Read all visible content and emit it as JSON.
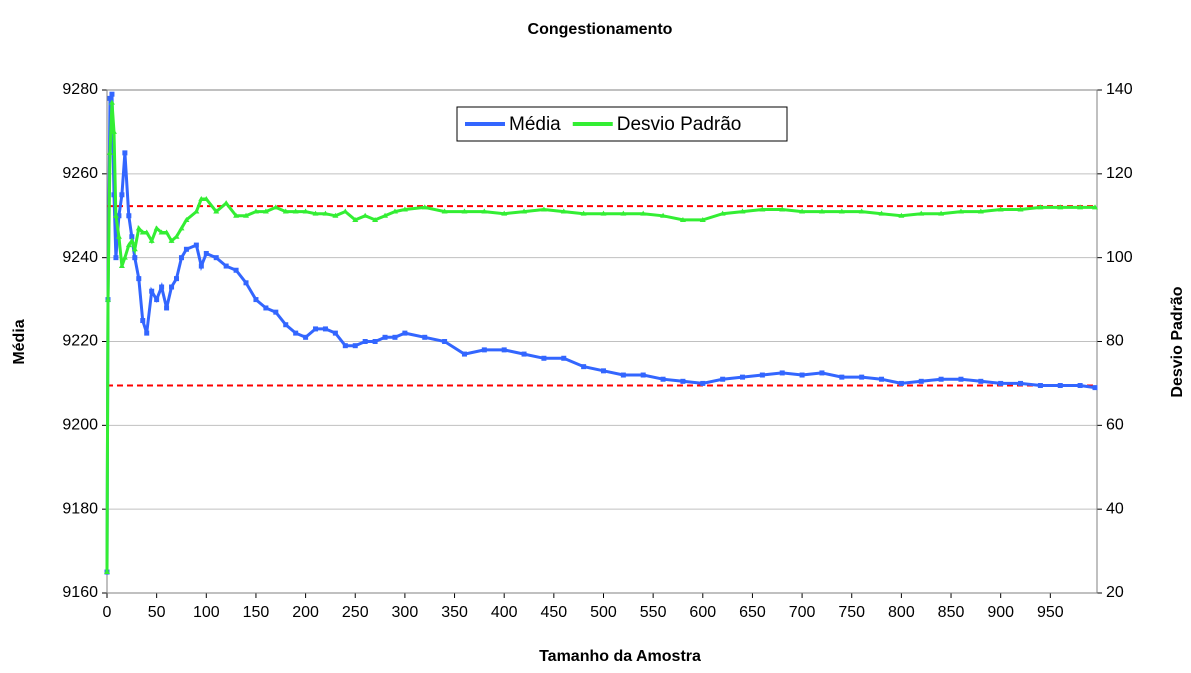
{
  "chart_data": {
    "type": "line",
    "title": "Congestionamento",
    "x_label": "Tamanho da Amostra",
    "y_label": "Média",
    "y2_label": "Desvio Padrão",
    "x": [
      0,
      1,
      3,
      5,
      7,
      9,
      12,
      15,
      18,
      22,
      25,
      28,
      32,
      36,
      40,
      45,
      50,
      55,
      60,
      65,
      70,
      75,
      80,
      90,
      95,
      100,
      110,
      120,
      130,
      140,
      150,
      160,
      170,
      180,
      190,
      200,
      210,
      220,
      230,
      240,
      250,
      260,
      270,
      280,
      290,
      300,
      320,
      340,
      360,
      380,
      400,
      420,
      440,
      460,
      480,
      500,
      520,
      540,
      560,
      580,
      600,
      620,
      640,
      660,
      680,
      700,
      720,
      740,
      760,
      780,
      800,
      820,
      840,
      860,
      880,
      900,
      920,
      940,
      960,
      980,
      995
    ],
    "series": [
      {
        "name": "Média",
        "color": "#3366ff",
        "marker": "square",
        "values": [
          9165,
          9230,
          9278,
          9279,
          9255,
          9240,
          9250,
          9255,
          9265,
          9250,
          9245,
          9240,
          9235,
          9225,
          9222,
          9232,
          9230,
          9233,
          9228,
          9233,
          9235,
          9240,
          9242,
          9243,
          9238,
          9241,
          9240,
          9238,
          9237,
          9234,
          9230,
          9228,
          9227,
          9224,
          9222,
          9221,
          9223,
          9223,
          9222,
          9219,
          9219,
          9220,
          9220,
          9221,
          9221,
          9222,
          9221,
          9220,
          9217,
          9218,
          9218,
          9217,
          9216,
          9216,
          9214,
          9213,
          9212,
          9212,
          9211,
          9210.5,
          9210,
          9211,
          9211.5,
          9212,
          9212.5,
          9212,
          9212.5,
          9211.5,
          9211.5,
          9211,
          9210,
          9210.5,
          9211,
          9211,
          9210.5,
          9210,
          9210,
          9209.5,
          9209.5,
          9209.5,
          9209
        ]
      },
      {
        "name": "Desvio Padrão",
        "color": "#33ee33",
        "marker": "triangle",
        "axis": "y2",
        "values": [
          25,
          90,
          125,
          137,
          130,
          110,
          105,
          98,
          100,
          103,
          104,
          102,
          107,
          106,
          106,
          104,
          107,
          106,
          106,
          104,
          105,
          107,
          109,
          111,
          114,
          114,
          111,
          113,
          110,
          110,
          111,
          111,
          112,
          111,
          111,
          111,
          110.5,
          110.5,
          110,
          111,
          109,
          110,
          109,
          110,
          111,
          111.5,
          112,
          111,
          111,
          111,
          110.5,
          111,
          111.5,
          111,
          110.5,
          110.5,
          110.5,
          110.5,
          110,
          109,
          109,
          110.5,
          111,
          111.5,
          111.5,
          111,
          111,
          111,
          111,
          110.5,
          110,
          110.5,
          110.5,
          111,
          111,
          111.5,
          111.5,
          112,
          112,
          112,
          112
        ]
      }
    ],
    "xlim": [
      0,
      997
    ],
    "xticks": [
      0,
      50,
      100,
      150,
      200,
      250,
      300,
      350,
      400,
      450,
      500,
      550,
      600,
      650,
      700,
      750,
      800,
      850,
      900,
      950
    ],
    "ylim": [
      9160,
      9280
    ],
    "yticks": [
      9160,
      9180,
      9200,
      9220,
      9240,
      9260,
      9280
    ],
    "y2lim": [
      20,
      140
    ],
    "y2ticks": [
      20,
      40,
      60,
      80,
      100,
      120,
      140
    ],
    "grid": true,
    "legend": "top",
    "reference_lines": [
      {
        "value": 9209.5,
        "axis": "y"
      },
      {
        "value": 112.3,
        "axis": "y2"
      }
    ],
    "reference_color": "#ff0000"
  }
}
